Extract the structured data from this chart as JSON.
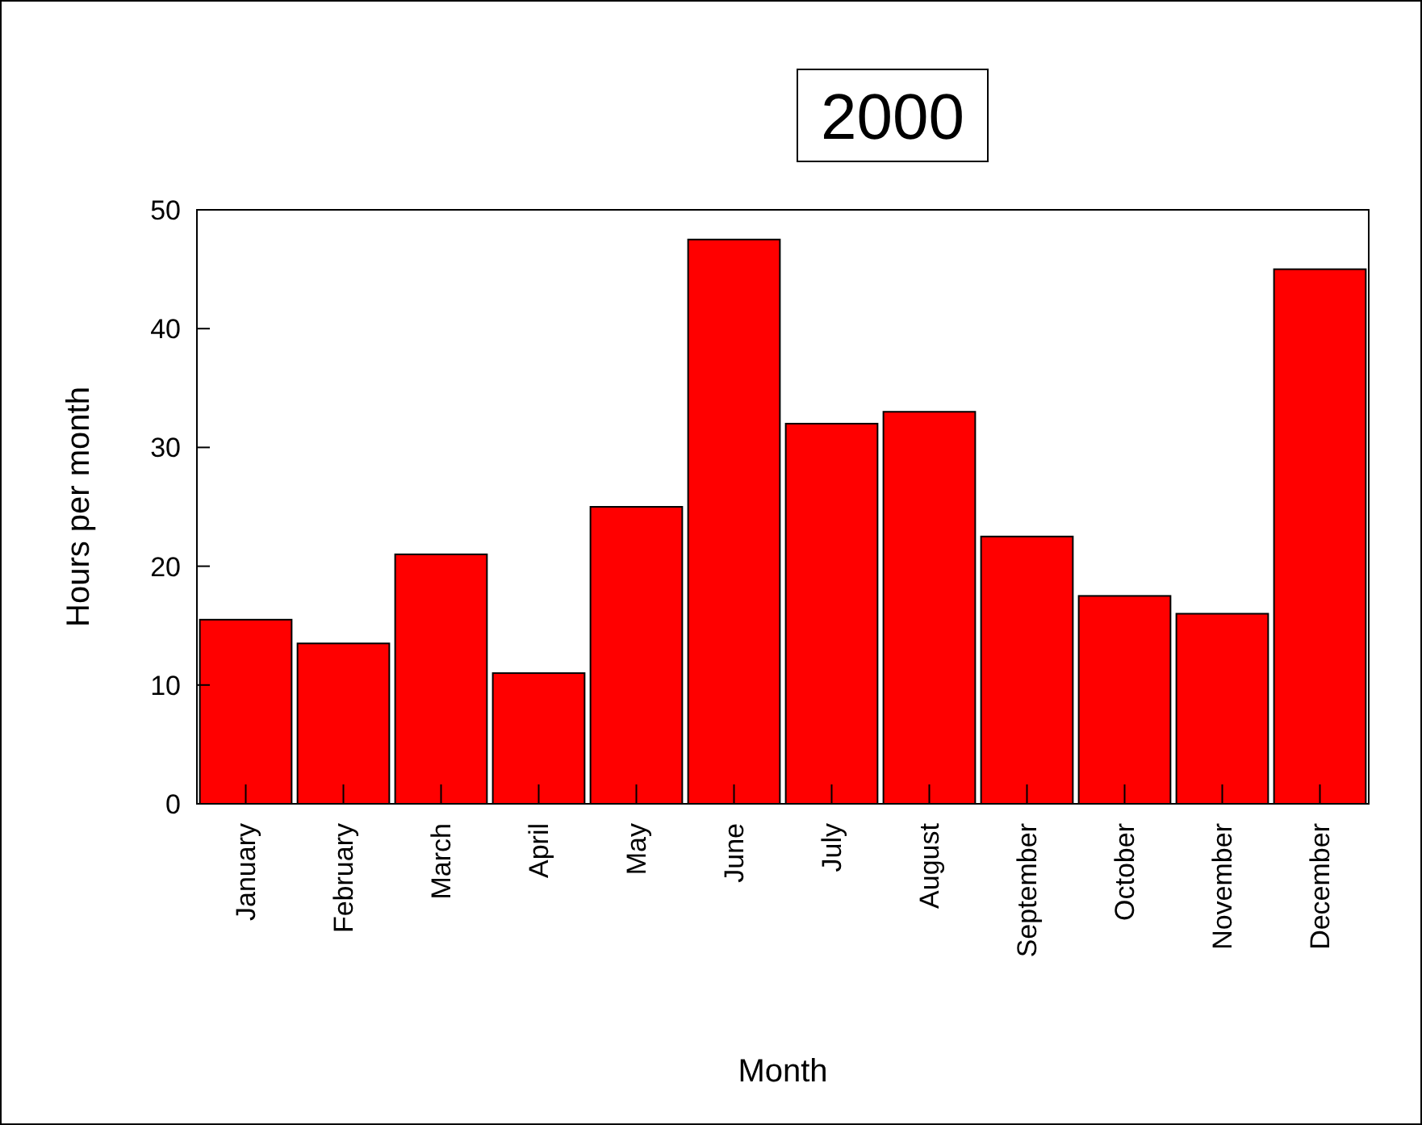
{
  "chart_data": {
    "type": "bar",
    "title": "2000",
    "xlabel": "Month",
    "ylabel": "Hours per month",
    "categories": [
      "January",
      "February",
      "March",
      "April",
      "May",
      "June",
      "July",
      "August",
      "September",
      "October",
      "November",
      "December"
    ],
    "values": [
      15.5,
      13.5,
      21,
      11,
      25,
      47.5,
      32,
      33,
      22.5,
      17.5,
      16,
      45
    ],
    "color": "#ff0000",
    "ylim": [
      0,
      50
    ],
    "yticks": [
      0,
      10,
      20,
      30,
      40,
      50
    ],
    "grid": false
  }
}
